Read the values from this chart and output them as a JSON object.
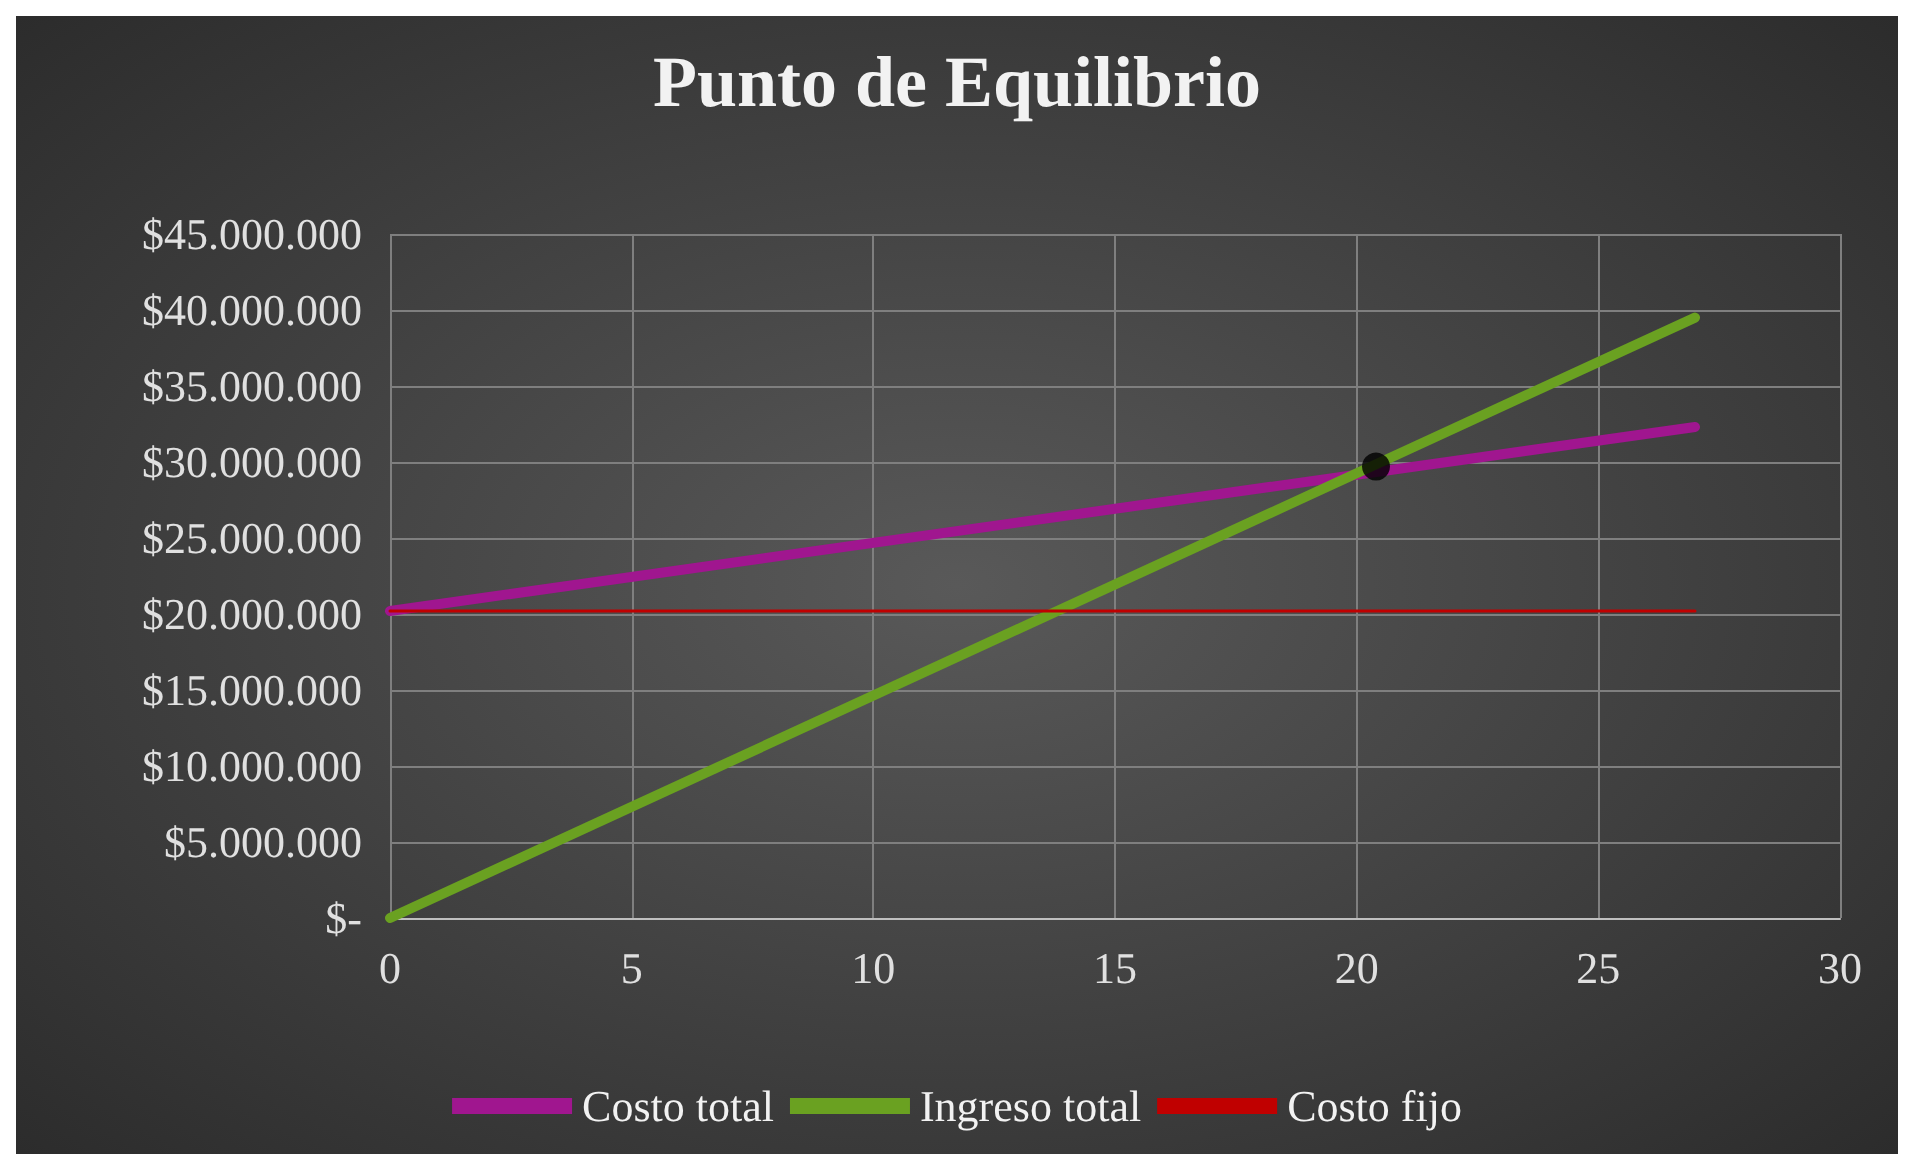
{
  "chart_data": {
    "type": "line",
    "title": "Punto de Equilibrio",
    "xlim": [
      0,
      30
    ],
    "xticks": [
      0,
      5,
      10,
      15,
      20,
      25,
      30
    ],
    "ylim": [
      0,
      45000000
    ],
    "yticks": [
      {
        "value": 0,
        "label": "$-"
      },
      {
        "value": 5000000,
        "label": "$5.000.000"
      },
      {
        "value": 10000000,
        "label": "$10.000.000"
      },
      {
        "value": 15000000,
        "label": "$15.000.000"
      },
      {
        "value": 20000000,
        "label": "$20.000.000"
      },
      {
        "value": 25000000,
        "label": "$25.000.000"
      },
      {
        "value": 30000000,
        "label": "$30.000.000"
      },
      {
        "value": 35000000,
        "label": "$35.000.000"
      },
      {
        "value": 40000000,
        "label": "$40.000.000"
      },
      {
        "value": 45000000,
        "label": "$45.000.000"
      }
    ],
    "grid": true,
    "legend": "bottom",
    "marker": "none",
    "line_style": "solid",
    "series": [
      {
        "name": "Costo total",
        "color": "#a0168f",
        "x": [
          0,
          27
        ],
        "values": [
          20200000,
          32300000
        ]
      },
      {
        "name": "Ingreso total",
        "color": "#6aa121",
        "x": [
          0,
          27
        ],
        "values": [
          0,
          39500000
        ]
      },
      {
        "name": "Costo fijo",
        "color": "#c00000",
        "x": [
          0,
          27
        ],
        "values": [
          20200000,
          20200000
        ]
      },
      {
        "type": "scatter",
        "color": "#000000",
        "marker": "circle",
        "x": [
          20.4
        ],
        "values": [
          29700000
        ]
      }
    ]
  }
}
